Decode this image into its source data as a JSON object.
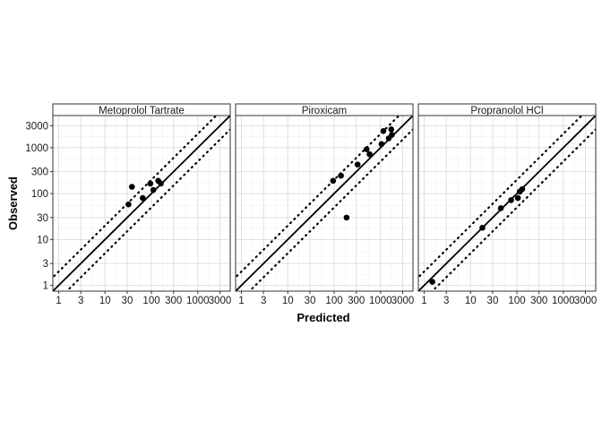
{
  "chart_data": {
    "type": "scatter",
    "xlabel": "Predicted",
    "ylabel": "Observed",
    "x_scale": "log10",
    "y_scale": "log10",
    "xlim": [
      0.75,
      5000
    ],
    "ylim": [
      0.75,
      5000
    ],
    "x_ticks": [
      1,
      3,
      10,
      30,
      100,
      300,
      1000,
      3000
    ],
    "x_tick_labels": [
      "1",
      "3",
      "10",
      "30",
      "100",
      "300",
      "1000",
      "3000"
    ],
    "y_ticks": [
      1,
      3,
      10,
      30,
      100,
      300,
      1000,
      3000
    ],
    "y_tick_labels": [
      "1",
      "3",
      "10",
      "30",
      "100",
      "300",
      "1000",
      "3000"
    ],
    "grid": true,
    "reference_lines": [
      {
        "style": "solid",
        "fold": 1
      },
      {
        "style": "dotted",
        "fold": 2
      },
      {
        "style": "dotted",
        "fold": 0.5
      }
    ],
    "facets": [
      {
        "name": "Metoprolol Tartrate",
        "points": [
          {
            "x": 32,
            "y": 58
          },
          {
            "x": 38,
            "y": 140
          },
          {
            "x": 65,
            "y": 80
          },
          {
            "x": 95,
            "y": 165
          },
          {
            "x": 110,
            "y": 120
          },
          {
            "x": 140,
            "y": 190
          },
          {
            "x": 160,
            "y": 165
          }
        ]
      },
      {
        "name": "Piroxicam",
        "points": [
          {
            "x": 95,
            "y": 190
          },
          {
            "x": 140,
            "y": 245
          },
          {
            "x": 185,
            "y": 30
          },
          {
            "x": 320,
            "y": 430
          },
          {
            "x": 500,
            "y": 920
          },
          {
            "x": 580,
            "y": 720
          },
          {
            "x": 1050,
            "y": 1200
          },
          {
            "x": 1150,
            "y": 2300
          },
          {
            "x": 1500,
            "y": 1600
          },
          {
            "x": 1700,
            "y": 2500
          },
          {
            "x": 1750,
            "y": 1900
          }
        ]
      },
      {
        "name": "Propranolol HCl",
        "points": [
          {
            "x": 1.5,
            "y": 1.2
          },
          {
            "x": 18,
            "y": 18
          },
          {
            "x": 45,
            "y": 48
          },
          {
            "x": 75,
            "y": 72
          },
          {
            "x": 105,
            "y": 80
          },
          {
            "x": 115,
            "y": 110
          },
          {
            "x": 130,
            "y": 125
          }
        ]
      }
    ]
  }
}
